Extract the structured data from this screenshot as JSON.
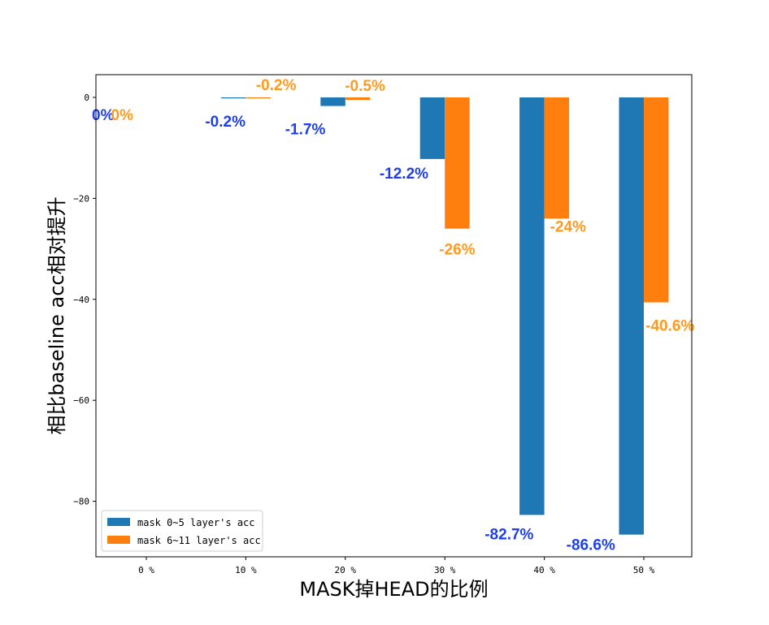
{
  "chart_data": {
    "type": "bar",
    "title": "",
    "xlabel": "MASK掉HEAD的比例",
    "ylabel": "相比baseline acc相对提升",
    "categories": [
      "0 %",
      "10 %",
      "20 %",
      "30 %",
      "40 %",
      "50 %"
    ],
    "ylim": [
      -91,
      4.5
    ],
    "yticks": [
      0,
      -20,
      -40,
      -60,
      -80
    ],
    "ytick_labels": [
      "0",
      "−20",
      "−40",
      "−60",
      "−80"
    ],
    "grid": false,
    "legend_position": "lower-left",
    "series": [
      {
        "name": "mask 0~5 layer's acc",
        "color": "#1f77b4",
        "label_color": "#1f3fe6",
        "values": [
          0,
          -0.2,
          -1.7,
          -12.2,
          -82.7,
          -86.6
        ],
        "labels": [
          "0%",
          "-0.2%",
          "-1.7%",
          "-12.2%",
          "-82.7%",
          "-86.6%"
        ]
      },
      {
        "name": "mask 6~11 layer's acc",
        "color": "#ff7f0e",
        "label_color": "#ff9a1e",
        "values": [
          0,
          -0.2,
          -0.5,
          -26,
          -24,
          -40.6
        ],
        "labels": [
          "0%",
          "-0.2%",
          "-0.5%",
          "-26%",
          "-24%",
          "-40.6%"
        ]
      }
    ]
  }
}
